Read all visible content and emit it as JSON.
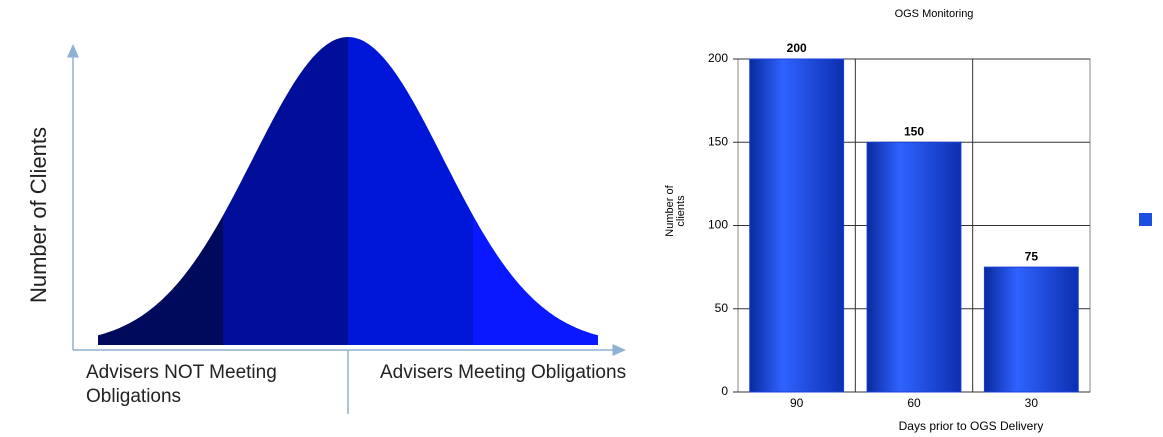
{
  "diagram": {
    "y_axis_label": "Number of Clients",
    "left_label": "Advisers NOT Meeting Obligations",
    "right_label": "Advisers Meeting Obligations"
  },
  "chart_data": {
    "type": "bar",
    "title": "OGS Monitoring",
    "ylabel": "Number of clients",
    "xlabel": "Days prior to OGS Delivery",
    "categories": [
      "90",
      "60",
      "30"
    ],
    "values": [
      200,
      150,
      75
    ],
    "color": "#1a3fd6",
    "ylim": [
      0,
      200
    ],
    "yticks": [
      0,
      50,
      100,
      150,
      200
    ],
    "grid": true
  }
}
